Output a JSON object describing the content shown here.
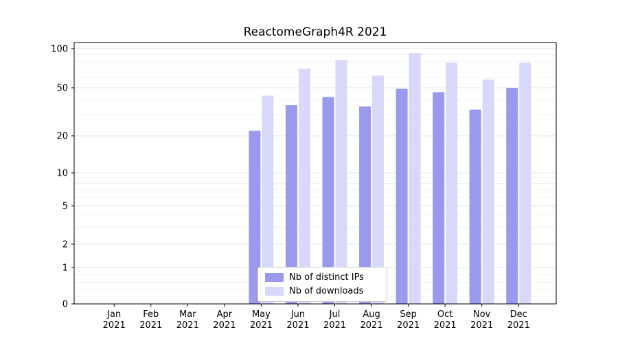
{
  "title": "ReactomeGraph4R 2021",
  "chart_data": {
    "type": "bar",
    "title": "ReactomeGraph4R 2021",
    "categories": [
      "Jan 2021",
      "Feb 2021",
      "Mar 2021",
      "Apr 2021",
      "May 2021",
      "Jun 2021",
      "Jul 2021",
      "Aug 2021",
      "Sep 2021",
      "Oct 2021",
      "Nov 2021",
      "Dec 2021"
    ],
    "months": [
      "Jan",
      "Feb",
      "Mar",
      "Apr",
      "May",
      "Jun",
      "Jul",
      "Aug",
      "Sep",
      "Oct",
      "Nov",
      "Dec"
    ],
    "year": "2021",
    "series": [
      {
        "name": "Nb of distinct IPs",
        "color": "#9a9aec",
        "values": [
          0,
          0,
          0,
          0,
          22,
          36,
          42,
          35,
          49,
          46,
          33,
          50
        ]
      },
      {
        "name": "Nb of downloads",
        "color": "#d8d8f8",
        "values": [
          0,
          0,
          0,
          0,
          43,
          70,
          82,
          62,
          93,
          78,
          58,
          78
        ]
      }
    ],
    "y_ticks": [
      0,
      1,
      2,
      5,
      10,
      20,
      50,
      100
    ],
    "y_minor_gridlines": [
      0.2,
      0.4,
      0.6,
      0.8,
      3,
      4,
      6,
      7,
      8,
      9,
      30,
      40,
      60,
      70,
      80,
      90
    ],
    "ylim": [
      0,
      100
    ],
    "scale": "symlog",
    "grid": true,
    "legend_position": "lower center",
    "xlabel": "",
    "ylabel": ""
  }
}
